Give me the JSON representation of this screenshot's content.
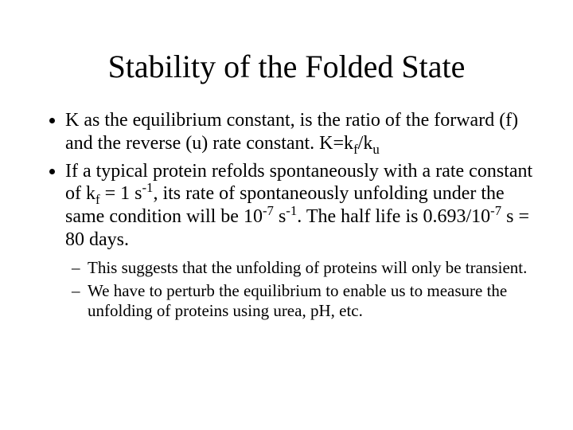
{
  "title": "Stability of the Folded State",
  "bullets": [
    {
      "prefix": "K as the equilibrium constant, is the ratio of the forward (f) and the reverse (u) rate constant. K=k",
      "sub1": "f",
      "mid1": "/k",
      "sub2": "u"
    },
    {
      "prefix": "If a typical protein refolds spontaneously with a rate constant of k",
      "sub1": "f",
      "mid1": " = 1 s",
      "sup1": "-1",
      "mid2": ", its rate of spontaneously unfolding under the same condition will be 10",
      "sup2": "-7",
      "mid3": " s",
      "sup3": "-1",
      "mid4": ". The half life is 0.693/10",
      "sup4": "-7",
      "suffix": " s = 80 days."
    }
  ],
  "subbullets": [
    "This suggests that the unfolding of proteins will only be transient.",
    "We have to perturb the equilibrium to enable us to measure the unfolding of proteins using urea, pH, etc."
  ],
  "style": {
    "background_color": "#ffffff",
    "text_color": "#000000",
    "font_family": "Times New Roman",
    "title_fontsize": 40,
    "body_fontsize": 24,
    "sub_fontsize": 21,
    "slide_width": 720,
    "slide_height": 540
  }
}
